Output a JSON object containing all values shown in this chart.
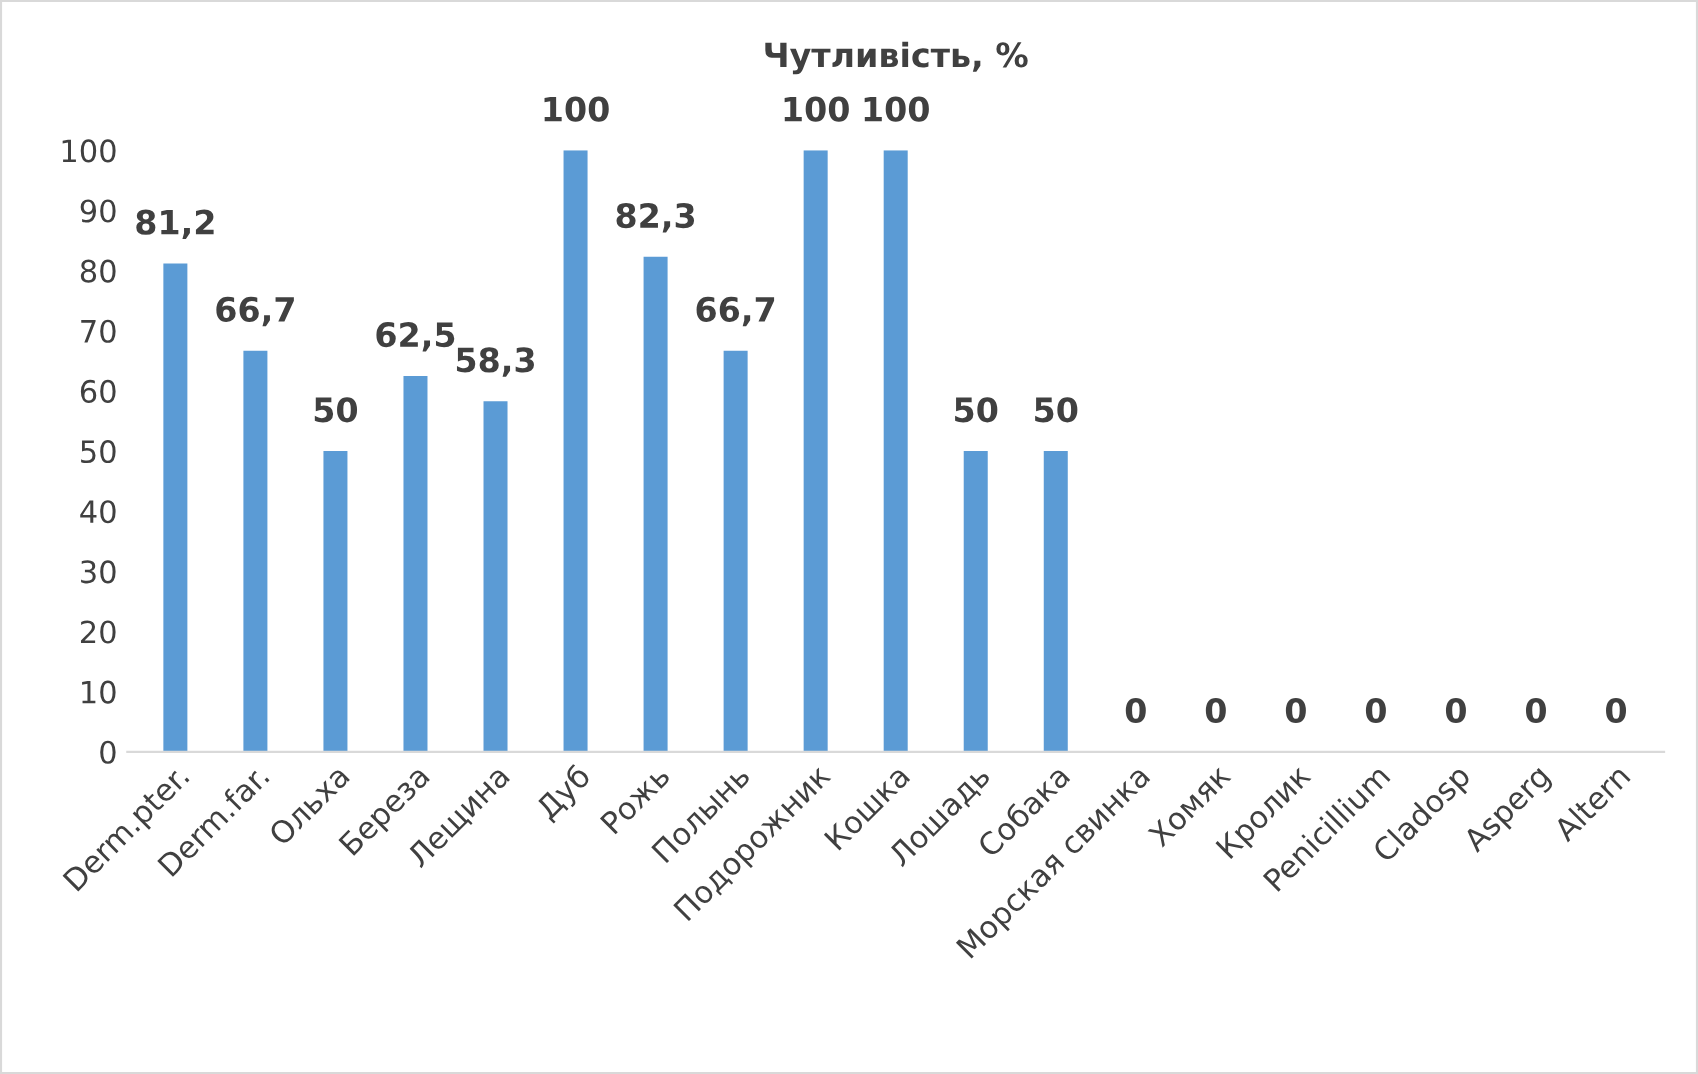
{
  "chart_data": {
    "type": "bar",
    "title": "Чутливість, %",
    "categories": [
      "Derm.pter.",
      "Derm.far.",
      "Ольха",
      "Береза",
      "Лещина",
      "Дуб",
      "Рожь",
      "Полынь",
      "Подорожник",
      "Кошка",
      "Лошадь",
      "Собака",
      "Морская свинка",
      "Хомяк",
      "Кролик",
      "Penicillium",
      "Cladosp",
      "Asperg",
      "Altern"
    ],
    "values": [
      81.2,
      66.7,
      50,
      62.5,
      58.3,
      100,
      82.3,
      66.7,
      100,
      100,
      50,
      50,
      0,
      0,
      0,
      0,
      0,
      0,
      0
    ],
    "value_labels": [
      "81,2",
      "66,7",
      "50",
      "62,5",
      "58,3",
      "100",
      "82,3",
      "66,7",
      "100",
      "100",
      "50",
      "50",
      "0",
      "0",
      "0",
      "0",
      "0",
      "0",
      "0"
    ],
    "color": "#5b9bd5",
    "ylim": [
      0,
      100
    ],
    "yticks": [
      0,
      10,
      20,
      30,
      40,
      50,
      60,
      70,
      80,
      90,
      100
    ],
    "grid": false
  }
}
